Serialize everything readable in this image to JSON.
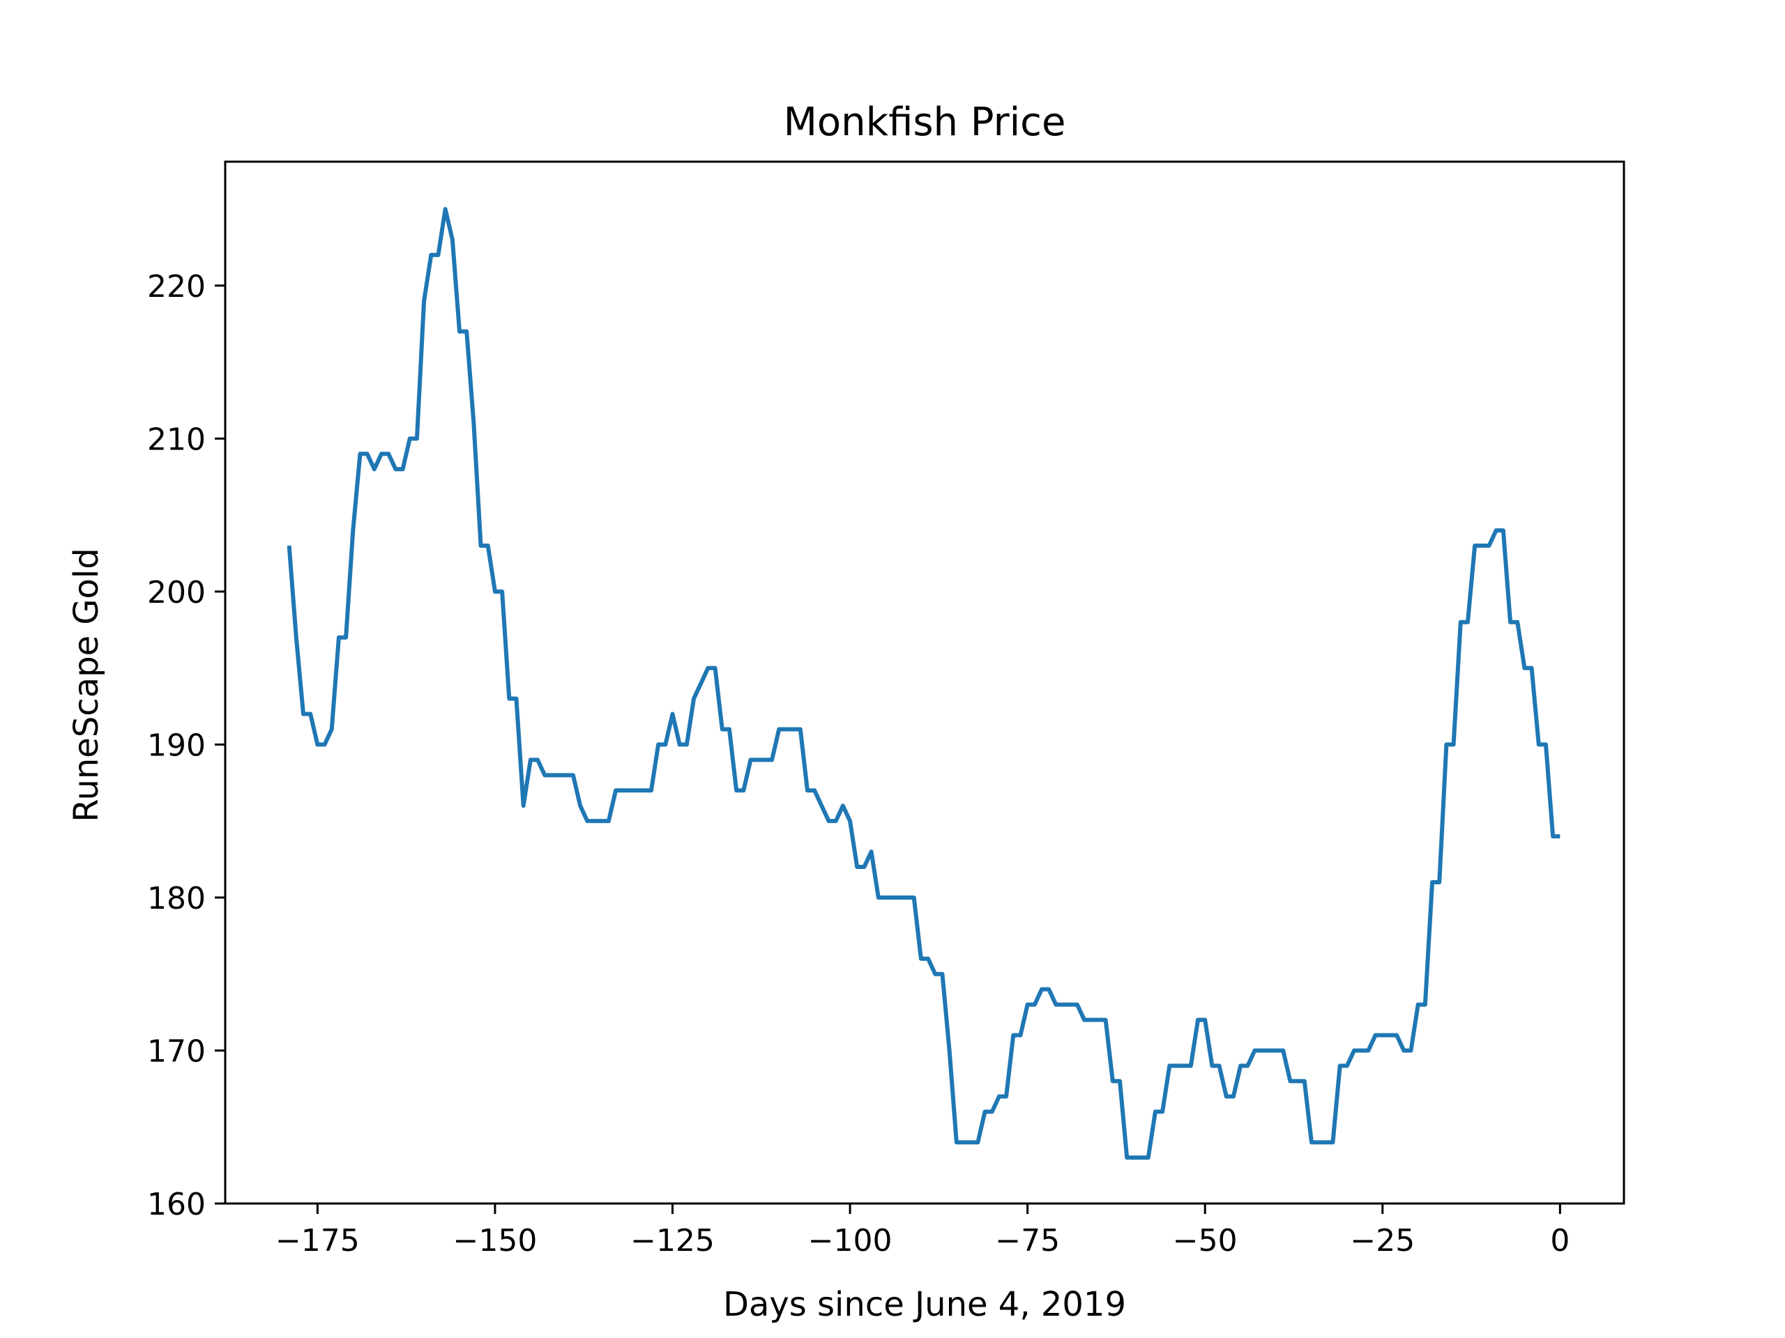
{
  "chart_data": {
    "type": "line",
    "title": "Monkfish Price",
    "xlabel": "Days since June 4, 2019",
    "ylabel": "RuneScape Gold",
    "xlim": [
      -188,
      9
    ],
    "ylim": [
      160,
      228.1
    ],
    "xticks": [
      -175,
      -150,
      -125,
      -100,
      -75,
      -50,
      -25,
      0
    ],
    "xtick_labels": [
      "−175",
      "−150",
      "−125",
      "−100",
      "−75",
      "−50",
      "−25",
      "0"
    ],
    "yticks": [
      160,
      170,
      180,
      190,
      200,
      210,
      220
    ],
    "ytick_labels": [
      "160",
      "170",
      "180",
      "190",
      "200",
      "210",
      "220"
    ],
    "grid": false,
    "series": [
      {
        "color": "#1f77b4",
        "x": [
          -179,
          -178,
          -177,
          -176,
          -175,
          -174,
          -173,
          -172,
          -171,
          -170,
          -169,
          -168,
          -167,
          -166,
          -165,
          -164,
          -163,
          -162,
          -161,
          -160,
          -159,
          -158,
          -157,
          -156,
          -155,
          -154,
          -153,
          -152,
          -151,
          -150,
          -149,
          -148,
          -147,
          -146,
          -145,
          -144,
          -143,
          -142,
          -141,
          -140,
          -139,
          -138,
          -137,
          -136,
          -135,
          -134,
          -133,
          -132,
          -131,
          -130,
          -129,
          -128,
          -127,
          -126,
          -125,
          -124,
          -123,
          -122,
          -121,
          -120,
          -119,
          -118,
          -117,
          -116,
          -115,
          -114,
          -113,
          -112,
          -111,
          -110,
          -109,
          -108,
          -107,
          -106,
          -105,
          -104,
          -103,
          -102,
          -101,
          -100,
          -99,
          -98,
          -97,
          -96,
          -95,
          -94,
          -93,
          -92,
          -91,
          -90,
          -89,
          -88,
          -87,
          -86,
          -85,
          -84,
          -83,
          -82,
          -81,
          -80,
          -79,
          -78,
          -77,
          -76,
          -75,
          -74,
          -73,
          -72,
          -71,
          -70,
          -69,
          -68,
          -67,
          -66,
          -65,
          -64,
          -63,
          -62,
          -61,
          -60,
          -59,
          -58,
          -57,
          -56,
          -55,
          -54,
          -53,
          -52,
          -51,
          -50,
          -49,
          -48,
          -47,
          -46,
          -45,
          -44,
          -43,
          -42,
          -41,
          -40,
          -39,
          -38,
          -37,
          -36,
          -35,
          -34,
          -33,
          -32,
          -31,
          -30,
          -29,
          -28,
          -27,
          -26,
          -25,
          -24,
          -23,
          -22,
          -21,
          -20,
          -19,
          -18,
          -17,
          -16,
          -15,
          -14,
          -13,
          -12,
          -11,
          -10,
          -9,
          -8,
          -7,
          -6,
          -5,
          -4,
          -3,
          -2,
          -1,
          0
        ],
        "y": [
          203,
          197,
          192,
          192,
          190,
          190,
          191,
          197,
          197,
          204,
          209,
          209,
          208,
          209,
          209,
          208,
          208,
          210,
          210,
          219,
          222,
          222,
          225,
          223,
          217,
          217,
          211,
          203,
          203,
          200,
          200,
          193,
          193,
          186,
          189,
          189,
          188,
          188,
          188,
          188,
          188,
          186,
          185,
          185,
          185,
          185,
          187,
          187,
          187,
          187,
          187,
          187,
          190,
          190,
          192,
          190,
          190,
          193,
          194,
          195,
          195,
          191,
          191,
          187,
          187,
          189,
          189,
          189,
          189,
          191,
          191,
          191,
          191,
          187,
          187,
          186,
          185,
          185,
          186,
          185,
          182,
          182,
          183,
          180,
          180,
          180,
          180,
          180,
          180,
          176,
          176,
          175,
          175,
          170,
          164,
          164,
          164,
          164,
          166,
          166,
          167,
          167,
          171,
          171,
          173,
          173,
          174,
          174,
          173,
          173,
          173,
          173,
          172,
          172,
          172,
          172,
          168,
          168,
          163,
          163,
          163,
          163,
          166,
          166,
          169,
          169,
          169,
          169,
          172,
          172,
          169,
          169,
          167,
          167,
          169,
          169,
          170,
          170,
          170,
          170,
          170,
          168,
          168,
          168,
          164,
          164,
          164,
          164,
          169,
          169,
          170,
          170,
          170,
          171,
          171,
          171,
          171,
          170,
          170,
          173,
          173,
          181,
          181,
          190,
          190,
          198,
          198,
          203,
          203,
          203,
          204,
          204,
          198,
          198,
          195,
          195,
          190,
          190,
          184,
          184
        ]
      }
    ]
  }
}
